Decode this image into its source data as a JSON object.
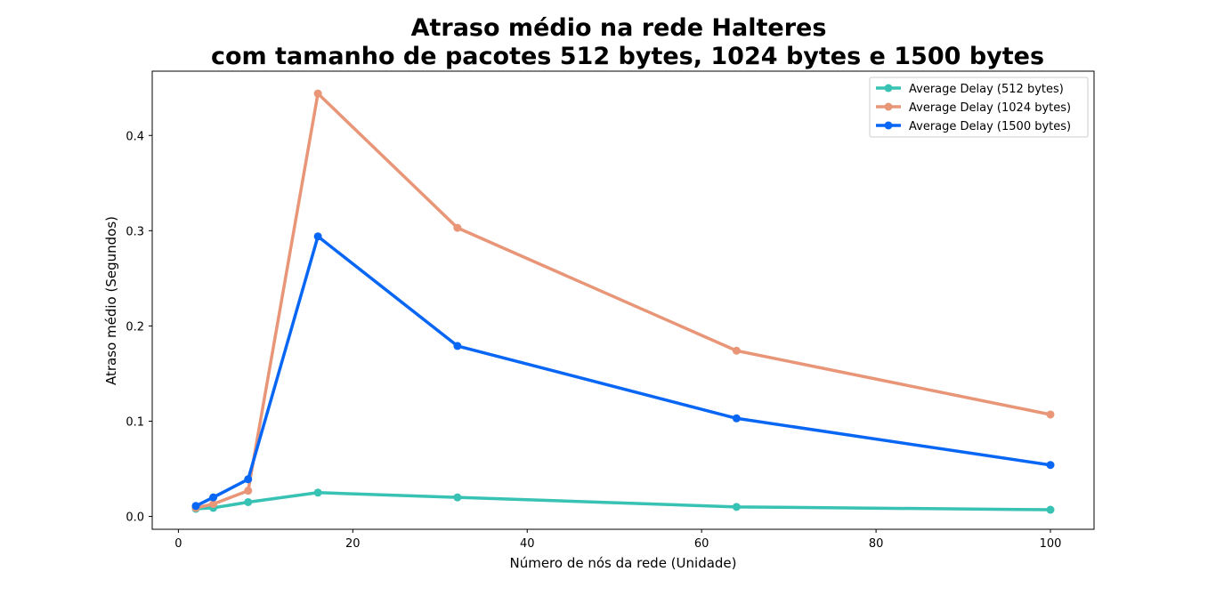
{
  "chart_data": {
    "type": "line",
    "title_line1": "Atraso médio na rede Halteres",
    "title_line2": "com tamanho de pacotes 512 bytes, 1024 bytes e 1500 bytes",
    "xlabel": "Número de nós da rede (Unidade)",
    "ylabel": "Atraso médio (Segundos)",
    "xlim": [
      -3,
      105
    ],
    "ylim": [
      -0.0135,
      0.4675
    ],
    "xticks": [
      0,
      20,
      40,
      60,
      80,
      100
    ],
    "yticks": [
      0.0,
      0.1,
      0.2,
      0.3,
      0.4
    ],
    "xtick_labels": [
      "0",
      "20",
      "40",
      "60",
      "80",
      "100"
    ],
    "ytick_labels": [
      "0.0",
      "0.1",
      "0.2",
      "0.3",
      "0.4"
    ],
    "grid": false,
    "legend_position": "top-right",
    "x": [
      2,
      4,
      8,
      16,
      32,
      64,
      100
    ],
    "series": [
      {
        "name": "Average Delay (512 bytes)",
        "color": "#37c2b4",
        "values": [
          0.008,
          0.009,
          0.015,
          0.025,
          0.02,
          0.01,
          0.007
        ]
      },
      {
        "name": "Average Delay (1024 bytes)",
        "color": "#e89677",
        "values": [
          0.009,
          0.013,
          0.027,
          0.444,
          0.303,
          0.174,
          0.107
        ]
      },
      {
        "name": "Average Delay (1500 bytes)",
        "color": "#0866f5",
        "values": [
          0.011,
          0.02,
          0.039,
          0.294,
          0.179,
          0.103,
          0.054
        ]
      }
    ]
  }
}
